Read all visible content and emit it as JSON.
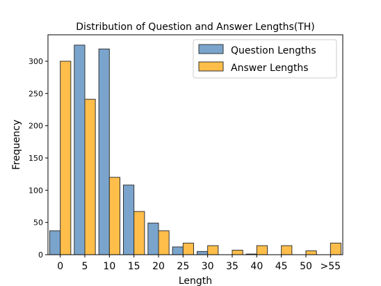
{
  "chart_data": {
    "type": "bar",
    "title": "Distribution of Question and Answer Lengths(TH)",
    "xlabel": "Length",
    "ylabel": "Frequency",
    "categories": [
      "0",
      "5",
      "10",
      "15",
      "20",
      "25",
      "30",
      "35",
      "40",
      "45",
      "50",
      ">55"
    ],
    "series": [
      {
        "name": "Question Lengths",
        "color": "#7aa4cc",
        "values": [
          37,
          325,
          319,
          108,
          49,
          12,
          5,
          0,
          1,
          0,
          0,
          0
        ]
      },
      {
        "name": "Answer Lengths",
        "color": "#ffbe4a",
        "values": [
          300,
          241,
          120,
          67,
          37,
          18,
          14,
          7,
          14,
          14,
          6,
          18
        ]
      }
    ],
    "yticks": [
      0,
      50,
      100,
      150,
      200,
      250,
      300
    ],
    "ylim": [
      0,
      341
    ],
    "grid": false,
    "legend": "top-right"
  }
}
